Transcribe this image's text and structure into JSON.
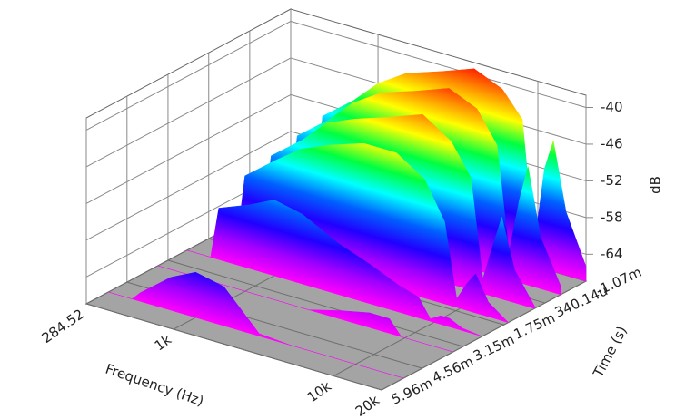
{
  "chart_data": {
    "type": "surface",
    "xlabel": "Frequency (Hz)",
    "ylabel": "Time (s)",
    "zlabel": "dB",
    "xlim": [
      284.52,
      20000
    ],
    "xlog": true,
    "xticks": [
      284.52,
      {
        "value": 1000,
        "label": "1k"
      },
      {
        "value": 10000,
        "label": "10k"
      },
      {
        "value": 20000,
        "label": "20k"
      }
    ],
    "ylim": [
      -0.00107,
      0.00596
    ],
    "yticks": [
      {
        "value": -0.00107,
        "label": "-1.07m"
      },
      {
        "value": 0.00034014,
        "label": "340.14u"
      },
      {
        "value": 0.00175,
        "label": "1.75m"
      },
      {
        "value": 0.00315,
        "label": "3.15m"
      },
      {
        "value": 0.00456,
        "label": "4.56m"
      },
      {
        "value": 0.00596,
        "label": "5.96m"
      }
    ],
    "zlim": [
      -68.4,
      -38
    ],
    "zticks": [
      -40,
      -46,
      -52,
      -58,
      -64
    ],
    "grid": true,
    "floor_color": "#a4a4a4",
    "colormap": [
      "#ff0000",
      "#ff8000",
      "#ffff00",
      "#00ff40",
      "#00ffff",
      "#0060ff",
      "#2000ff",
      "#a000ff",
      "#ff00ff"
    ],
    "x": [
      284.52,
      400,
      450,
      700,
      1000,
      1500,
      2500,
      4000,
      6000,
      8000,
      9500,
      11000,
      12500,
      15000,
      20000
    ],
    "series": [
      {
        "time": -0.00107,
        "values": [
          -68.4,
          -68.4,
          -54,
          -50,
          -46,
          -43,
          -41,
          -39,
          -41,
          -45,
          -65,
          -52,
          -47,
          -58,
          -66
        ]
      },
      {
        "time": -0.0002,
        "values": [
          -68.4,
          -68.4,
          -55,
          -51,
          -47,
          -44,
          -42,
          -40,
          -42,
          -47,
          -64,
          -55,
          -49,
          -60,
          -67
        ]
      },
      {
        "time": 0.0007,
        "values": [
          -68.4,
          -68.4,
          -56,
          -52,
          -48,
          -46,
          -44,
          -42,
          -45,
          -50,
          -66,
          -60,
          -55,
          -63,
          -68
        ]
      },
      {
        "time": 0.0016,
        "values": [
          -68.4,
          -68.4,
          -57,
          -53,
          -50,
          -48,
          -46,
          -46,
          -49,
          -55,
          -67,
          -64,
          -62,
          -66,
          -68.4
        ]
      },
      {
        "time": 0.0025,
        "values": [
          -68.4,
          -68.4,
          -60,
          -58,
          -56,
          -57,
          -60,
          -62,
          -64,
          -65,
          -68,
          -67,
          -67,
          -68,
          -68.4
        ]
      },
      {
        "time": 0.0035,
        "values": [
          -68.4,
          -68.4,
          -68.4,
          -68.4,
          -68.4,
          -68.4,
          -68.4,
          -67,
          -66,
          -66,
          -68.4,
          -68.4,
          -68.4,
          -68.4,
          -68.4
        ]
      },
      {
        "time": 0.0052,
        "values": [
          -68.4,
          -68.4,
          -67,
          -63,
          -61,
          -62,
          -68,
          -68.4,
          -68.4,
          -68.4,
          -68.4,
          -68.4,
          -68.4,
          -68.4,
          -68.4
        ]
      }
    ]
  }
}
